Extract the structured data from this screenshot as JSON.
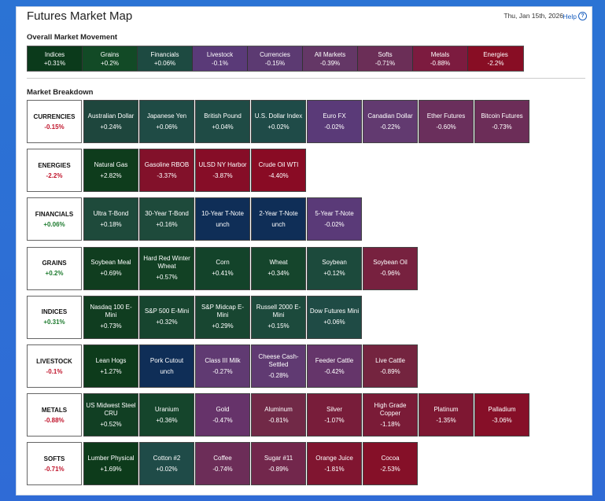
{
  "header": {
    "title": "Futures Market Map",
    "date": "Thu, Jan 15th, 2026",
    "help": "Help",
    "help_icon": "?"
  },
  "overall": {
    "heading": "Overall Market Movement",
    "tiles": [
      {
        "name": "Indices",
        "pct": "+0.31%",
        "color": "#0b3a1b"
      },
      {
        "name": "Grains",
        "pct": "+0.2%",
        "color": "#124a26"
      },
      {
        "name": "Financials",
        "pct": "+0.06%",
        "color": "#1d4a41"
      },
      {
        "name": "Livestock",
        "pct": "-0.1%",
        "color": "#5a3a78"
      },
      {
        "name": "Currencies",
        "pct": "-0.15%",
        "color": "#5c3a72"
      },
      {
        "name": "All Markets",
        "pct": "-0.39%",
        "color": "#643766"
      },
      {
        "name": "Softs",
        "pct": "-0.71%",
        "color": "#6b2e57"
      },
      {
        "name": "Metals",
        "pct": "-0.88%",
        "color": "#7c1b3f"
      },
      {
        "name": "Energies",
        "pct": "-2.2%",
        "color": "#880d24"
      }
    ]
  },
  "breakdown": {
    "heading": "Market Breakdown",
    "rows": [
      {
        "name": "CURRENCIES",
        "pct": "-0.15%",
        "sign": "neg",
        "tiles": [
          {
            "name": "Australian Dollar",
            "pct": "+0.24%",
            "color": "#1e463d"
          },
          {
            "name": "Japanese Yen",
            "pct": "+0.06%",
            "color": "#1f4b45"
          },
          {
            "name": "British Pound",
            "pct": "+0.04%",
            "color": "#1f4b45"
          },
          {
            "name": "U.S. Dollar Index",
            "pct": "+0.02%",
            "color": "#1f4b48"
          },
          {
            "name": "Euro FX",
            "pct": "-0.02%",
            "color": "#5a3a78"
          },
          {
            "name": "Canadian Dollar",
            "pct": "-0.22%",
            "color": "#623a70"
          },
          {
            "name": "Ether Futures",
            "pct": "-0.60%",
            "color": "#6a2f5c"
          },
          {
            "name": "Bitcoin Futures",
            "pct": "-0.73%",
            "color": "#6c2d58"
          }
        ]
      },
      {
        "name": "ENERGIES",
        "pct": "-2.2%",
        "sign": "neg",
        "tiles": [
          {
            "name": "Natural Gas",
            "pct": "+2.82%",
            "color": "#0e3c1c"
          },
          {
            "name": "Gasoline RBOB",
            "pct": "-3.37%",
            "color": "#82112a"
          },
          {
            "name": "ULSD NY Harbor",
            "pct": "-3.87%",
            "color": "#860d27"
          },
          {
            "name": "Crude Oil WTI",
            "pct": "-4.40%",
            "color": "#890b24"
          }
        ]
      },
      {
        "name": "FINANCIALS",
        "pct": "+0.06%",
        "sign": "pos",
        "tiles": [
          {
            "name": "Ultra T-Bond",
            "pct": "+0.18%",
            "color": "#1e4a3b"
          },
          {
            "name": "30-Year T-Bond",
            "pct": "+0.16%",
            "color": "#1e4a3b"
          },
          {
            "name": "10-Year T-Note",
            "pct": "unch",
            "color": "#0f2e57"
          },
          {
            "name": "2-Year T-Note",
            "pct": "unch",
            "color": "#0f2e57"
          },
          {
            "name": "5-Year T-Note",
            "pct": "-0.02%",
            "color": "#5a3a78"
          }
        ]
      },
      {
        "name": "GRAINS",
        "pct": "+0.2%",
        "sign": "pos",
        "tiles": [
          {
            "name": "Soybean Meal",
            "pct": "+0.69%",
            "color": "#103d1f"
          },
          {
            "name": "Hard Red Winter Wheat",
            "pct": "+0.57%",
            "color": "#124124"
          },
          {
            "name": "Corn",
            "pct": "+0.41%",
            "color": "#13432a"
          },
          {
            "name": "Wheat",
            "pct": "+0.34%",
            "color": "#15452c"
          },
          {
            "name": "Soybean",
            "pct": "+0.12%",
            "color": "#1c4a3c"
          },
          {
            "name": "Soybean Oil",
            "pct": "-0.96%",
            "color": "#77213f"
          }
        ]
      },
      {
        "name": "INDICES",
        "pct": "+0.31%",
        "sign": "pos",
        "tiles": [
          {
            "name": "Nasdaq 100 E-Mini",
            "pct": "+0.73%",
            "color": "#103d20"
          },
          {
            "name": "S&P 500 E-Mini",
            "pct": "+0.32%",
            "color": "#17452f"
          },
          {
            "name": "S&P Midcap E-Mini",
            "pct": "+0.29%",
            "color": "#184631"
          },
          {
            "name": "Russell 2000 E-Mini",
            "pct": "+0.15%",
            "color": "#1c4a3c"
          },
          {
            "name": "Dow Futures Mini",
            "pct": "+0.06%",
            "color": "#1f4b45"
          }
        ]
      },
      {
        "name": "LIVESTOCK",
        "pct": "-0.1%",
        "sign": "neg",
        "tiles": [
          {
            "name": "Lean Hogs",
            "pct": "+1.27%",
            "color": "#0d3b1b"
          },
          {
            "name": "Pork Cutout",
            "pct": "unch",
            "color": "#0f2e57"
          },
          {
            "name": "Class III Milk",
            "pct": "-0.27%",
            "color": "#603a72"
          },
          {
            "name": "Cheese Cash-Settled",
            "pct": "-0.28%",
            "color": "#603a72"
          },
          {
            "name": "Feeder Cattle",
            "pct": "-0.42%",
            "color": "#65356a"
          },
          {
            "name": "Live Cattle",
            "pct": "-0.89%",
            "color": "#74243f"
          }
        ]
      },
      {
        "name": "METALS",
        "pct": "-0.88%",
        "sign": "neg",
        "tiles": [
          {
            "name": "US Midwest Steel CRU",
            "pct": "+0.52%",
            "color": "#113f23"
          },
          {
            "name": "Uranium",
            "pct": "+0.36%",
            "color": "#15452c"
          },
          {
            "name": "Gold",
            "pct": "-0.47%",
            "color": "#66336a"
          },
          {
            "name": "Aluminum",
            "pct": "-0.81%",
            "color": "#712947"
          },
          {
            "name": "Silver",
            "pct": "-1.07%",
            "color": "#781d3a"
          },
          {
            "name": "High Grade Copper",
            "pct": "-1.18%",
            "color": "#7a1b37"
          },
          {
            "name": "Platinum",
            "pct": "-1.35%",
            "color": "#7e1732"
          },
          {
            "name": "Palladium",
            "pct": "-3.06%",
            "color": "#860f28"
          }
        ]
      },
      {
        "name": "SOFTS",
        "pct": "-0.71%",
        "sign": "neg",
        "tiles": [
          {
            "name": "Lumber Physical",
            "pct": "+1.69%",
            "color": "#0d3b1b"
          },
          {
            "name": "Cotton #2",
            "pct": "+0.02%",
            "color": "#1f4b48"
          },
          {
            "name": "Coffee",
            "pct": "-0.74%",
            "color": "#6c2d58"
          },
          {
            "name": "Sugar #11",
            "pct": "-0.89%",
            "color": "#72274c"
          },
          {
            "name": "Orange Juice",
            "pct": "-1.81%",
            "color": "#801530"
          },
          {
            "name": "Cocoa",
            "pct": "-2.53%",
            "color": "#851028"
          }
        ]
      }
    ]
  }
}
